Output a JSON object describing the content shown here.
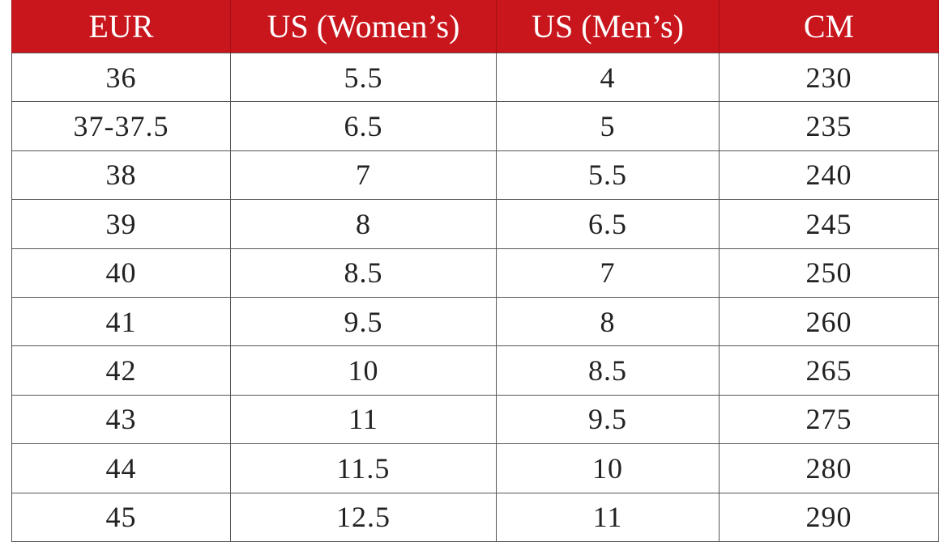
{
  "table": {
    "header": [
      "EUR",
      "US (Women’s)",
      "US (Men’s)",
      "CM"
    ],
    "rows": [
      [
        "36",
        "5.5",
        "4",
        "230"
      ],
      [
        "37-37.5",
        "6.5",
        "5",
        "235"
      ],
      [
        "38",
        "7",
        "5.5",
        "240"
      ],
      [
        "39",
        "8",
        "6.5",
        "245"
      ],
      [
        "40",
        "8.5",
        "7",
        "250"
      ],
      [
        "41",
        "9.5",
        "8",
        "260"
      ],
      [
        "42",
        "10",
        "8.5",
        "265"
      ],
      [
        "43",
        "11",
        "9.5",
        "275"
      ],
      [
        "44",
        "11.5",
        "10",
        "280"
      ],
      [
        "45",
        "12.5",
        "11",
        "290"
      ]
    ]
  }
}
